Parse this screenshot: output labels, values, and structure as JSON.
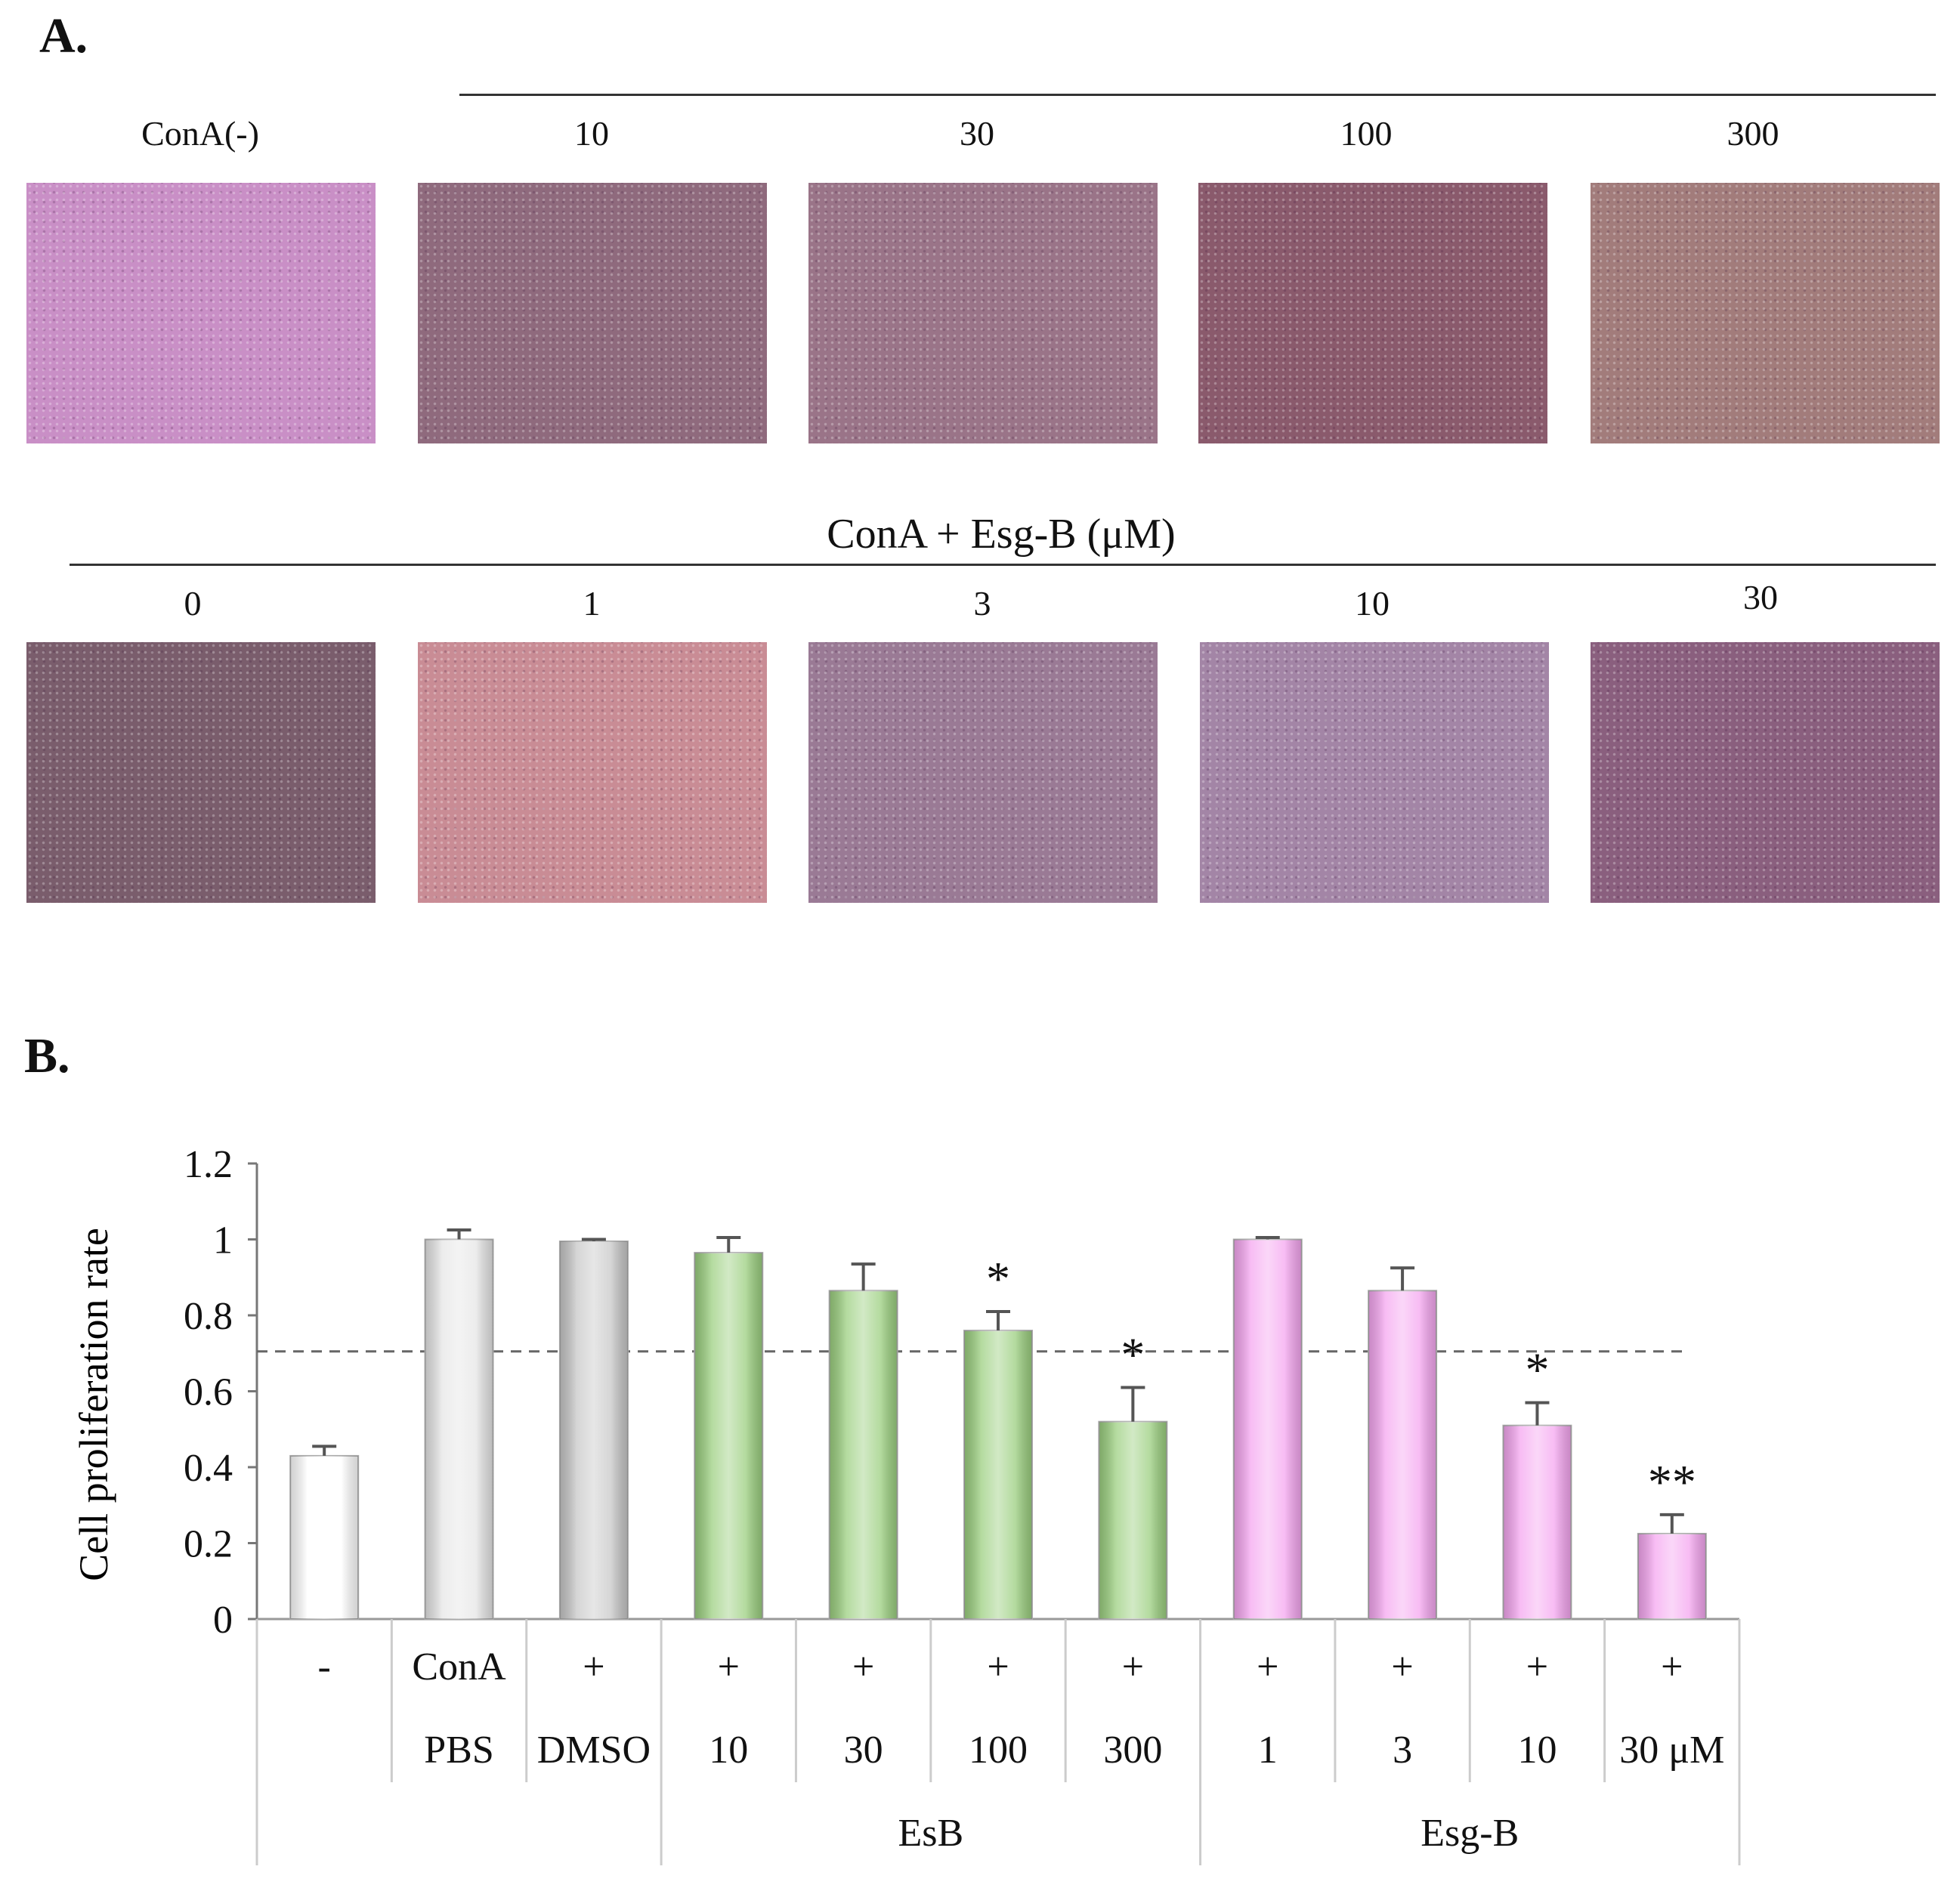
{
  "panels": {
    "a_label": "A.",
    "b_label": "B."
  },
  "micrographs": {
    "top_labels": [
      "ConA(-)",
      "10",
      "30",
      "100",
      "300"
    ],
    "bottom_labels": [
      "0",
      "1",
      "3",
      "10",
      "30"
    ],
    "group_title": "ConA + Esg-B (μM)",
    "top_colors": [
      "#c98fc6",
      "#8f6a7d",
      "#9a7488",
      "#8a5a6c",
      "#a27c7b"
    ],
    "bottom_colors": [
      "#7a5d6c",
      "#c98c95",
      "#9a7a95",
      "#a385a6",
      "#8a5f7e"
    ]
  },
  "chart_data": {
    "type": "bar",
    "ylabel": "Cell proliferation rate",
    "ylim": [
      0,
      1.2
    ],
    "yticks": [
      "0",
      "0.2",
      "0.4",
      "0.6",
      "0.8",
      "1",
      "1.2"
    ],
    "categories": [
      "-",
      "ConA",
      "+",
      "+",
      "+",
      "+",
      "+",
      "+",
      "+",
      "+",
      "+"
    ],
    "row1": [
      "-",
      "ConA",
      "+",
      "+",
      "+",
      "+",
      "+",
      "+",
      "+",
      "+",
      "+"
    ],
    "row2": [
      "",
      "PBS",
      "DMSO",
      "10",
      "30",
      "100",
      "300",
      "1",
      "3",
      "10",
      "30 μM"
    ],
    "groups": [
      {
        "label": "EsB",
        "start": 3,
        "end": 6
      },
      {
        "label": "Esg-B",
        "start": 7,
        "end": 10
      }
    ],
    "values": [
      0.43,
      1.0,
      0.995,
      0.965,
      0.865,
      0.76,
      0.52,
      1.0,
      0.865,
      0.51,
      0.225
    ],
    "errors": [
      0.025,
      0.025,
      0.005,
      0.04,
      0.07,
      0.05,
      0.09,
      0.005,
      0.06,
      0.06,
      0.05
    ],
    "significance": [
      "",
      "",
      "",
      "",
      "",
      "*",
      "*",
      "",
      "",
      "*",
      "**"
    ],
    "colors": [
      "#ffffff",
      "#e6e6e6",
      "#c8c8c8",
      "#9bcf7f",
      "#9bcf7f",
      "#9bcf7f",
      "#9bcf7f",
      "#f5a6f0",
      "#f5a6f0",
      "#f5a6f0",
      "#f5a6f0"
    ],
    "reference_line": 0.705
  }
}
